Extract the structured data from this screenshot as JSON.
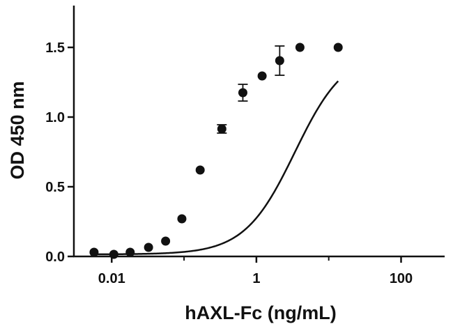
{
  "chart_data": {
    "type": "scatter",
    "title": "",
    "xlabel": "hAXL-Fc (ng/mL)",
    "ylabel": "OD 450 nm",
    "x_scale": "log",
    "xlim": [
      0.003,
      400
    ],
    "ylim": [
      0,
      1.8
    ],
    "x_ticks": [
      {
        "value": 0.01,
        "label": "0.01"
      },
      {
        "value": 1,
        "label": "1"
      },
      {
        "value": 100,
        "label": "100"
      }
    ],
    "y_ticks": [
      {
        "value": 0,
        "label": "0.0"
      },
      {
        "value": 0.5,
        "label": "0.5"
      },
      {
        "value": 1.0,
        "label": "1.0"
      },
      {
        "value": 1.5,
        "label": "1.5"
      }
    ],
    "grid": false,
    "legend": "none",
    "colors": {
      "marker": "#111111",
      "curve": "#111111",
      "axis": "#111111"
    },
    "series": [
      {
        "x": [
          0.0057,
          0.0107,
          0.018,
          0.0323,
          0.0556,
          0.0933,
          0.167,
          0.333,
          0.65,
          1.2,
          2.1,
          4.0,
          13.5
        ],
        "y": [
          0.03,
          0.015,
          0.03,
          0.065,
          0.11,
          0.27,
          0.62,
          0.915,
          1.175,
          1.295,
          1.405,
          1.5,
          1.5
        ],
        "yerr": [
          0,
          0,
          0,
          0,
          0,
          0,
          0,
          0.03,
          0.06,
          0,
          0.105,
          0,
          0
        ]
      }
    ],
    "fit_curve": {
      "model": "4PL",
      "bottom": 0.015,
      "top": 1.48,
      "ec50": 3.4,
      "hill": 1.25
    }
  }
}
